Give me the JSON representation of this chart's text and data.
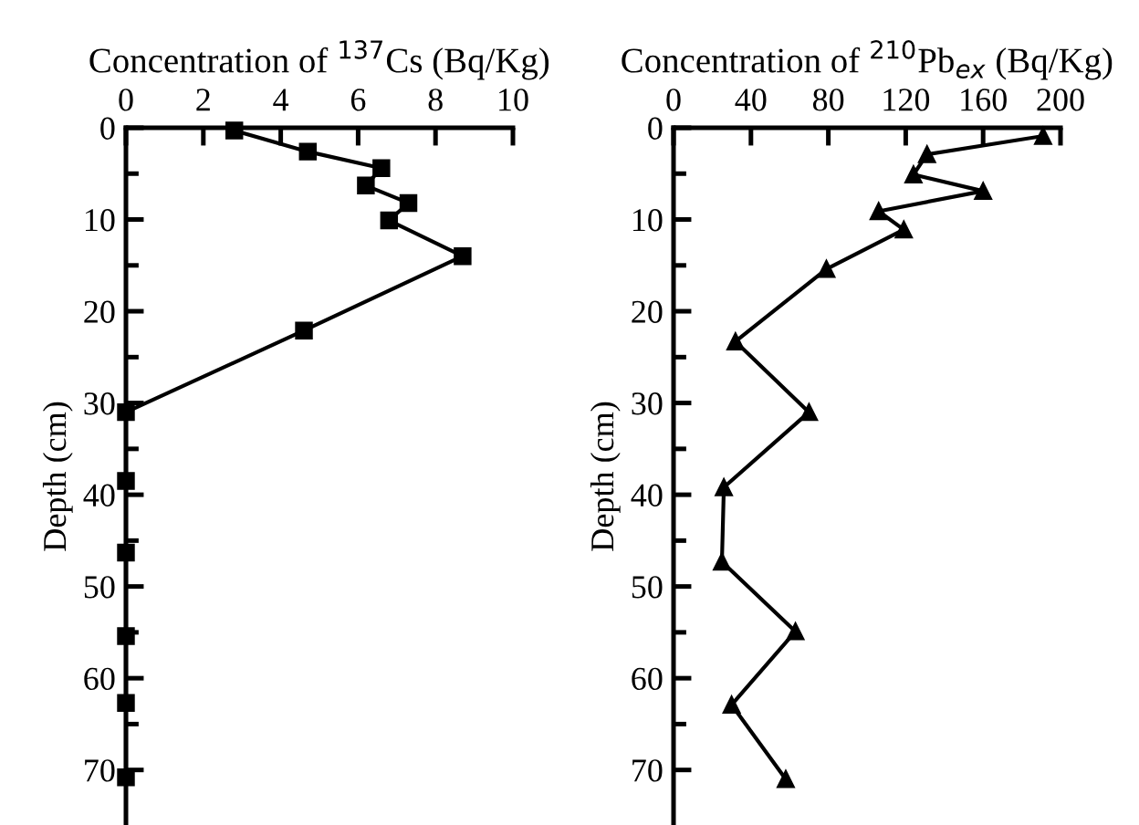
{
  "chart_data": [
    {
      "type": "line",
      "xlabel": "Concentration of $^{137}$Cs (Bq/Kg)",
      "ylabel": "Depth (cm)",
      "marker": "square",
      "line_style": "solid",
      "grid": false,
      "xlim": [
        0,
        10
      ],
      "xticks": [
        0,
        2,
        4,
        6,
        8,
        10
      ],
      "ylim": [
        76,
        0
      ],
      "yticks": [
        0,
        {
          "value": 5,
          "label": null
        },
        10,
        {
          "value": 15,
          "label": null
        },
        20,
        {
          "value": 25,
          "label": null
        },
        30,
        {
          "value": 35,
          "label": null
        },
        40,
        {
          "value": 45,
          "label": null
        },
        50,
        {
          "value": 55,
          "label": null
        },
        60,
        {
          "value": 65,
          "label": null
        },
        70
      ],
      "series": [
        {
          "color": "#000000",
          "x": [
            2.8,
            4.7,
            6.6,
            6.2,
            7.3,
            6.8,
            8.7,
            4.6,
            0,
            0,
            0,
            0,
            0,
            0
          ],
          "values": [
            0.3,
            2.6,
            4.4,
            6.3,
            8.2,
            10.1,
            14.0,
            22.1,
            31.0,
            38.5,
            46.3,
            55.4,
            62.7,
            70.8
          ]
        }
      ]
    },
    {
      "type": "line",
      "xlabel": "Concentration of $^{210}$Pb$_{ex}$ (Bq/Kg)",
      "ylabel": "Depth (cm)",
      "marker": "triangle",
      "line_style": "solid",
      "grid": false,
      "xlim": [
        0,
        200
      ],
      "xticks": [
        0,
        40,
        80,
        120,
        160,
        200
      ],
      "ylim": [
        76,
        0
      ],
      "yticks": [
        0,
        {
          "value": 5,
          "label": null
        },
        10,
        {
          "value": 15,
          "label": null
        },
        20,
        {
          "value": 25,
          "label": null
        },
        30,
        {
          "value": 35,
          "label": null
        },
        40,
        {
          "value": 45,
          "label": null
        },
        50,
        {
          "value": 55,
          "label": null
        },
        60,
        {
          "value": 65,
          "label": null
        },
        70
      ],
      "series": [
        {
          "color": "#000000",
          "x": [
            191,
            131,
            124,
            160,
            106,
            119,
            79,
            32,
            70,
            26,
            25,
            63,
            30,
            58
          ],
          "values": [
            0.9,
            2.9,
            5.1,
            6.9,
            9.1,
            11.1,
            15.4,
            23.3,
            31.0,
            39.2,
            47.3,
            54.9,
            62.9,
            71.0
          ]
        }
      ]
    }
  ]
}
